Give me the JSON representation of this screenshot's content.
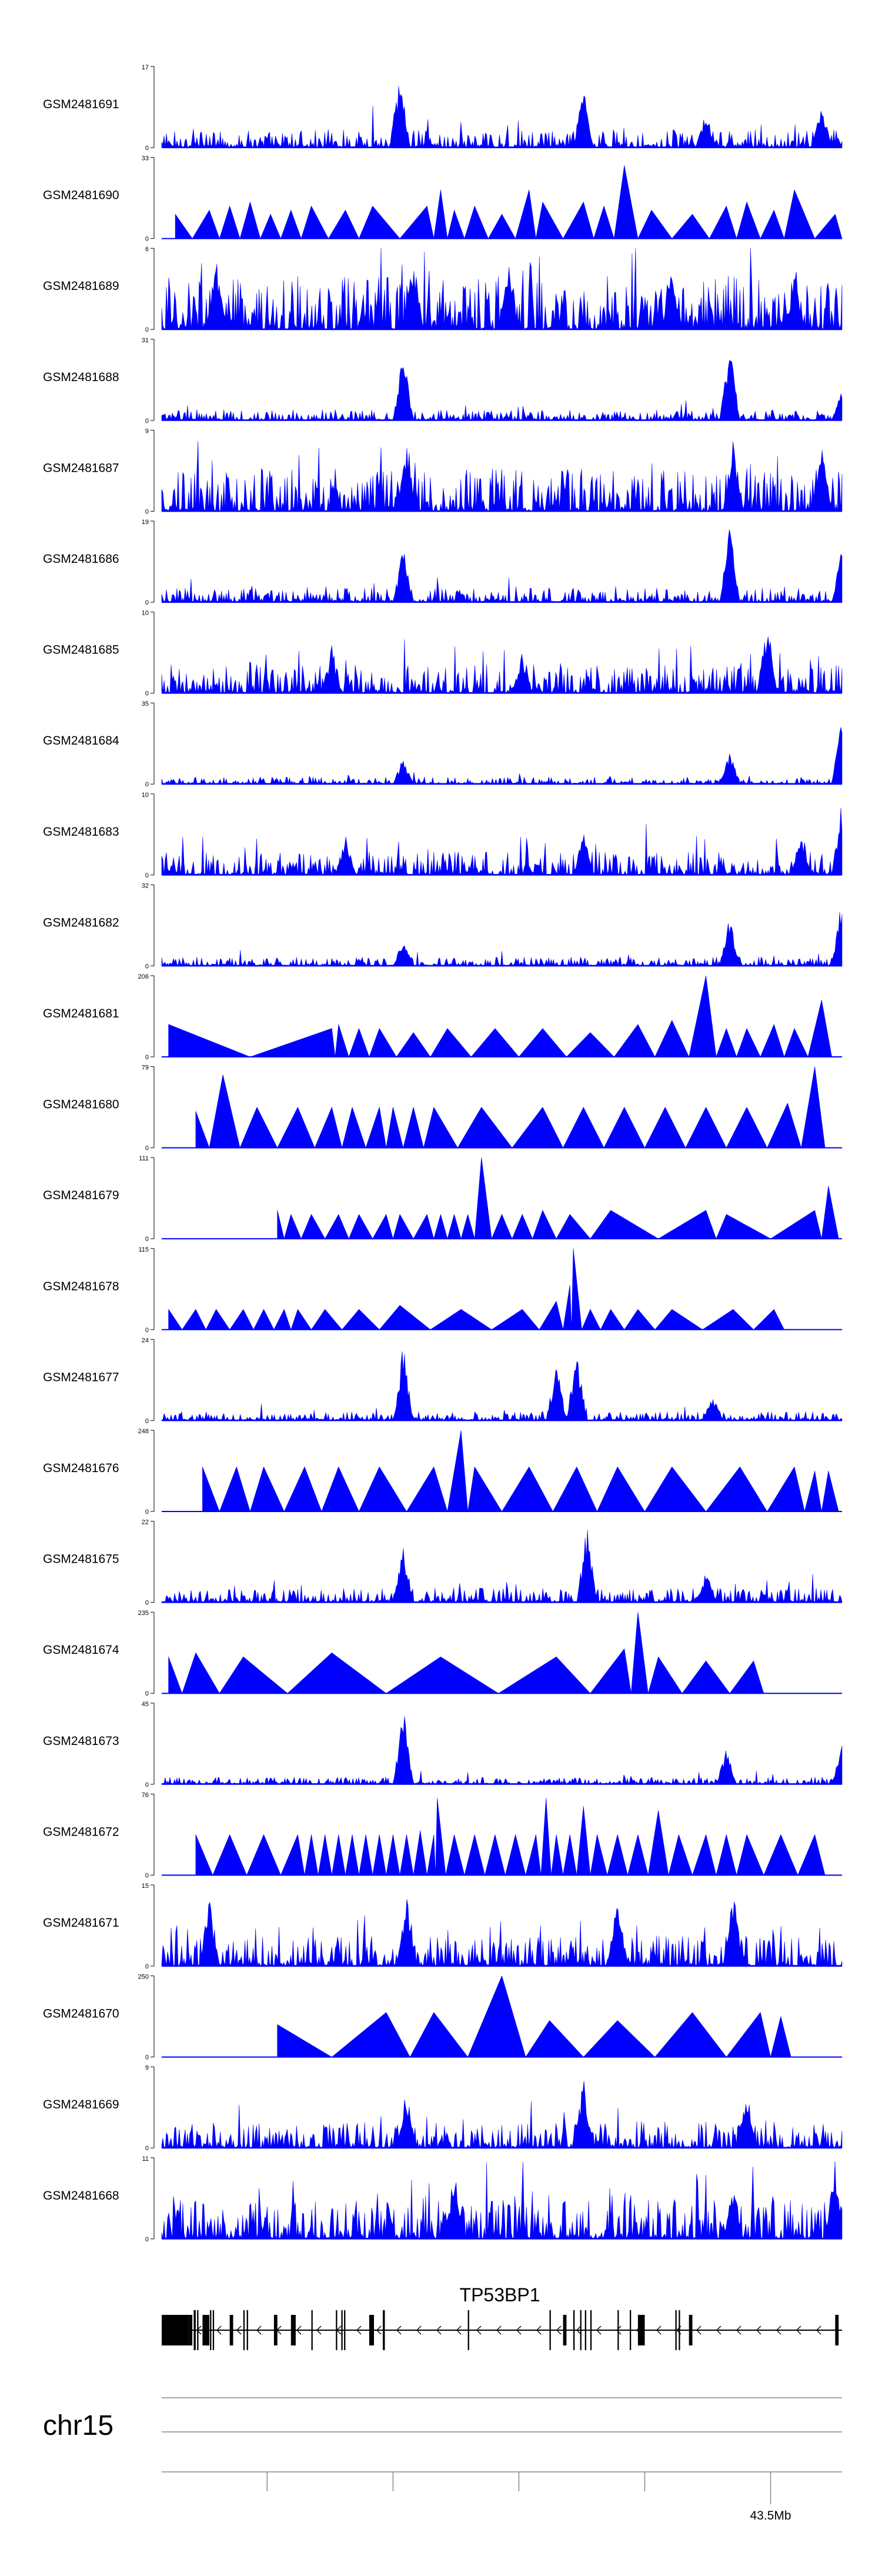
{
  "colors": {
    "signal": "#0000ff",
    "axis": "#000000",
    "text": "#000000",
    "ruler": "#888888"
  },
  "chart_data": {
    "type": "area",
    "title": "",
    "xlabel": "",
    "ylabel": "",
    "ymin_label": "0",
    "tracks": [
      {
        "name": "GSM2481691",
        "max": "17",
        "style": "dense",
        "density": 1.0,
        "peaks": [
          [
            0.35,
            1.0
          ],
          [
            0.62,
            0.8
          ],
          [
            0.8,
            0.45
          ],
          [
            0.97,
            0.55
          ]
        ]
      },
      {
        "name": "GSM2481690",
        "max": "33",
        "style": "sparse",
        "peaks": [
          [
            0.02,
            0.3
          ],
          [
            0.07,
            0.35
          ],
          [
            0.1,
            0.4
          ],
          [
            0.13,
            0.45
          ],
          [
            0.16,
            0.3
          ],
          [
            0.19,
            0.35
          ],
          [
            0.22,
            0.4
          ],
          [
            0.27,
            0.35
          ],
          [
            0.31,
            0.4
          ],
          [
            0.39,
            0.4
          ],
          [
            0.41,
            0.6
          ],
          [
            0.43,
            0.35
          ],
          [
            0.46,
            0.4
          ],
          [
            0.5,
            0.3
          ],
          [
            0.54,
            0.6
          ],
          [
            0.56,
            0.45
          ],
          [
            0.62,
            0.45
          ],
          [
            0.65,
            0.4
          ],
          [
            0.68,
            0.9
          ],
          [
            0.72,
            0.35
          ],
          [
            0.78,
            0.3
          ],
          [
            0.83,
            0.4
          ],
          [
            0.86,
            0.45
          ],
          [
            0.9,
            0.35
          ],
          [
            0.93,
            0.6
          ],
          [
            0.99,
            0.3
          ]
        ]
      },
      {
        "name": "GSM2481689",
        "max": "6",
        "style": "dense",
        "density": 3.0,
        "peaks": [
          [
            0.08,
            0.9
          ],
          [
            0.37,
            0.95
          ],
          [
            0.51,
            0.9
          ],
          [
            0.75,
            0.8
          ],
          [
            0.93,
            0.7
          ]
        ]
      },
      {
        "name": "GSM2481688",
        "max": "31",
        "style": "dense",
        "density": 0.6,
        "peaks": [
          [
            0.355,
            0.9
          ],
          [
            0.835,
            0.95
          ],
          [
            1.0,
            0.45
          ]
        ]
      },
      {
        "name": "GSM2481687",
        "max": "9",
        "style": "dense",
        "density": 2.4,
        "peaks": [
          [
            0.36,
            0.8
          ],
          [
            0.84,
            0.9
          ],
          [
            0.97,
            0.85
          ]
        ]
      },
      {
        "name": "GSM2481686",
        "max": "19",
        "style": "dense",
        "density": 0.8,
        "peaks": [
          [
            0.355,
            0.7
          ],
          [
            0.835,
            0.95
          ],
          [
            1.0,
            0.7
          ]
        ]
      },
      {
        "name": "GSM2481685",
        "max": "10",
        "style": "dense",
        "density": 1.6,
        "peaks": [
          [
            0.25,
            0.6
          ],
          [
            0.53,
            0.55
          ],
          [
            0.89,
            0.95
          ]
        ]
      },
      {
        "name": "GSM2481684",
        "max": "35",
        "style": "dense",
        "density": 0.4,
        "peaks": [
          [
            0.355,
            0.35
          ],
          [
            0.835,
            0.45
          ],
          [
            1.0,
            0.95
          ]
        ]
      },
      {
        "name": "GSM2481683",
        "max": "10",
        "style": "dense",
        "density": 1.3,
        "peaks": [
          [
            0.27,
            0.5
          ],
          [
            0.62,
            0.55
          ],
          [
            0.94,
            0.6
          ],
          [
            1.0,
            0.95
          ]
        ]
      },
      {
        "name": "GSM2481682",
        "max": "32",
        "style": "dense",
        "density": 0.5,
        "peaks": [
          [
            0.355,
            0.35
          ],
          [
            0.835,
            0.65
          ],
          [
            1.0,
            0.95
          ]
        ]
      },
      {
        "name": "GSM2481681",
        "max": "206",
        "style": "sparse",
        "peaks": [
          [
            0.01,
            0.4
          ],
          [
            0.25,
            0.35
          ],
          [
            0.26,
            0.4
          ],
          [
            0.29,
            0.35
          ],
          [
            0.32,
            0.35
          ],
          [
            0.37,
            0.3
          ],
          [
            0.42,
            0.35
          ],
          [
            0.49,
            0.35
          ],
          [
            0.56,
            0.35
          ],
          [
            0.63,
            0.3
          ],
          [
            0.7,
            0.4
          ],
          [
            0.75,
            0.45
          ],
          [
            0.8,
            1.0
          ],
          [
            0.83,
            0.35
          ],
          [
            0.86,
            0.35
          ],
          [
            0.9,
            0.4
          ],
          [
            0.93,
            0.35
          ],
          [
            0.97,
            0.7
          ]
        ]
      },
      {
        "name": "GSM2481680",
        "max": "79",
        "style": "sparse",
        "peaks": [
          [
            0.05,
            0.45
          ],
          [
            0.09,
            0.9
          ],
          [
            0.14,
            0.5
          ],
          [
            0.2,
            0.5
          ],
          [
            0.25,
            0.5
          ],
          [
            0.28,
            0.5
          ],
          [
            0.32,
            0.5
          ],
          [
            0.34,
            0.5
          ],
          [
            0.37,
            0.5
          ],
          [
            0.4,
            0.5
          ],
          [
            0.47,
            0.5
          ],
          [
            0.56,
            0.5
          ],
          [
            0.62,
            0.5
          ],
          [
            0.68,
            0.5
          ],
          [
            0.74,
            0.5
          ],
          [
            0.8,
            0.5
          ],
          [
            0.86,
            0.5
          ],
          [
            0.92,
            0.55
          ],
          [
            0.96,
            1.0
          ]
        ]
      },
      {
        "name": "GSM2481679",
        "max": "111",
        "style": "sparse",
        "peaks": [
          [
            0.17,
            0.35
          ],
          [
            0.19,
            0.3
          ],
          [
            0.22,
            0.3
          ],
          [
            0.26,
            0.3
          ],
          [
            0.29,
            0.3
          ],
          [
            0.33,
            0.3
          ],
          [
            0.35,
            0.3
          ],
          [
            0.39,
            0.3
          ],
          [
            0.41,
            0.3
          ],
          [
            0.43,
            0.3
          ],
          [
            0.45,
            0.3
          ],
          [
            0.47,
            1.0
          ],
          [
            0.5,
            0.3
          ],
          [
            0.53,
            0.3
          ],
          [
            0.56,
            0.35
          ],
          [
            0.6,
            0.3
          ],
          [
            0.66,
            0.35
          ],
          [
            0.8,
            0.35
          ],
          [
            0.83,
            0.3
          ],
          [
            0.96,
            0.35
          ],
          [
            0.98,
            0.65
          ]
        ]
      },
      {
        "name": "GSM2481678",
        "max": "115",
        "style": "sparse",
        "peaks": [
          [
            0.01,
            0.25
          ],
          [
            0.05,
            0.25
          ],
          [
            0.08,
            0.25
          ],
          [
            0.12,
            0.25
          ],
          [
            0.15,
            0.25
          ],
          [
            0.18,
            0.25
          ],
          [
            0.2,
            0.25
          ],
          [
            0.24,
            0.25
          ],
          [
            0.29,
            0.25
          ],
          [
            0.35,
            0.3
          ],
          [
            0.44,
            0.25
          ],
          [
            0.53,
            0.25
          ],
          [
            0.58,
            0.35
          ],
          [
            0.6,
            0.55
          ],
          [
            0.605,
            1.0
          ],
          [
            0.63,
            0.25
          ],
          [
            0.66,
            0.25
          ],
          [
            0.7,
            0.25
          ],
          [
            0.75,
            0.25
          ],
          [
            0.84,
            0.25
          ],
          [
            0.9,
            0.25
          ]
        ]
      },
      {
        "name": "GSM2481677",
        "max": "24",
        "style": "dense",
        "density": 0.5,
        "peaks": [
          [
            0.355,
            0.95
          ],
          [
            0.58,
            0.75
          ],
          [
            0.61,
            0.95
          ],
          [
            0.81,
            0.35
          ]
        ]
      },
      {
        "name": "GSM2481676",
        "max": "248",
        "style": "sparse",
        "peaks": [
          [
            0.06,
            0.55
          ],
          [
            0.11,
            0.55
          ],
          [
            0.15,
            0.55
          ],
          [
            0.21,
            0.55
          ],
          [
            0.26,
            0.55
          ],
          [
            0.32,
            0.55
          ],
          [
            0.4,
            0.55
          ],
          [
            0.44,
            1.0
          ],
          [
            0.46,
            0.55
          ],
          [
            0.54,
            0.55
          ],
          [
            0.61,
            0.55
          ],
          [
            0.67,
            0.55
          ],
          [
            0.75,
            0.55
          ],
          [
            0.85,
            0.55
          ],
          [
            0.93,
            0.55
          ],
          [
            0.96,
            0.5
          ],
          [
            0.98,
            0.5
          ]
        ]
      },
      {
        "name": "GSM2481675",
        "max": "22",
        "style": "dense",
        "density": 0.8,
        "peaks": [
          [
            0.355,
            0.75
          ],
          [
            0.625,
            1.0
          ],
          [
            0.8,
            0.4
          ]
        ]
      },
      {
        "name": "GSM2481674",
        "max": "235",
        "style": "sparse",
        "peaks": [
          [
            0.01,
            0.45
          ],
          [
            0.05,
            0.5
          ],
          [
            0.12,
            0.45
          ],
          [
            0.25,
            0.5
          ],
          [
            0.41,
            0.45
          ],
          [
            0.58,
            0.45
          ],
          [
            0.68,
            0.55
          ],
          [
            0.7,
            1.0
          ],
          [
            0.73,
            0.45
          ],
          [
            0.8,
            0.4
          ],
          [
            0.87,
            0.4
          ]
        ]
      },
      {
        "name": "GSM2481673",
        "max": "45",
        "style": "dense",
        "density": 0.4,
        "peaks": [
          [
            0.355,
            0.98
          ],
          [
            0.83,
            0.45
          ],
          [
            1.0,
            0.5
          ]
        ]
      },
      {
        "name": "GSM2481672",
        "max": "76",
        "style": "sparse",
        "peaks": [
          [
            0.05,
            0.5
          ],
          [
            0.1,
            0.5
          ],
          [
            0.15,
            0.5
          ],
          [
            0.2,
            0.5
          ],
          [
            0.22,
            0.5
          ],
          [
            0.24,
            0.5
          ],
          [
            0.26,
            0.5
          ],
          [
            0.28,
            0.5
          ],
          [
            0.3,
            0.5
          ],
          [
            0.32,
            0.5
          ],
          [
            0.34,
            0.5
          ],
          [
            0.36,
            0.5
          ],
          [
            0.38,
            0.55
          ],
          [
            0.4,
            0.5
          ],
          [
            0.405,
            0.95
          ],
          [
            0.43,
            0.5
          ],
          [
            0.46,
            0.5
          ],
          [
            0.49,
            0.5
          ],
          [
            0.52,
            0.5
          ],
          [
            0.55,
            0.5
          ],
          [
            0.565,
            0.95
          ],
          [
            0.58,
            0.5
          ],
          [
            0.6,
            0.5
          ],
          [
            0.62,
            0.85
          ],
          [
            0.64,
            0.5
          ],
          [
            0.67,
            0.5
          ],
          [
            0.7,
            0.5
          ],
          [
            0.73,
            0.8
          ],
          [
            0.76,
            0.5
          ],
          [
            0.8,
            0.5
          ],
          [
            0.83,
            0.5
          ],
          [
            0.86,
            0.5
          ],
          [
            0.91,
            0.5
          ],
          [
            0.96,
            0.5
          ]
        ]
      },
      {
        "name": "GSM2481671",
        "max": "15",
        "style": "dense",
        "density": 1.7,
        "peaks": [
          [
            0.07,
            0.9
          ],
          [
            0.36,
            1.0
          ],
          [
            0.67,
            0.9
          ],
          [
            0.84,
            0.95
          ]
        ]
      },
      {
        "name": "GSM2481670",
        "max": "250",
        "style": "sparse",
        "peaks": [
          [
            0.17,
            0.4
          ],
          [
            0.33,
            0.55
          ],
          [
            0.4,
            0.55
          ],
          [
            0.5,
            1.0
          ],
          [
            0.57,
            0.45
          ],
          [
            0.67,
            0.45
          ],
          [
            0.78,
            0.55
          ],
          [
            0.88,
            0.55
          ],
          [
            0.91,
            0.5
          ]
        ]
      },
      {
        "name": "GSM2481669",
        "max": "9",
        "style": "dense",
        "density": 1.4,
        "peaks": [
          [
            0.36,
            0.75
          ],
          [
            0.62,
            0.95
          ],
          [
            0.86,
            0.8
          ]
        ]
      },
      {
        "name": "GSM2481668",
        "max": "11",
        "style": "dense",
        "density": 2.2,
        "peaks": [
          [
            0.43,
            0.85
          ],
          [
            0.84,
            0.7
          ],
          [
            0.99,
            1.0
          ]
        ]
      }
    ],
    "gene": {
      "name": "TP53BP1",
      "strand": "-",
      "exons": [
        [
          0.0,
          0.04
        ],
        [
          0.04,
          0.045
        ],
        [
          0.047,
          0.05
        ],
        [
          0.052,
          0.054
        ],
        [
          0.06,
          0.07
        ],
        [
          0.071,
          0.073
        ],
        [
          0.075,
          0.077
        ],
        [
          0.1,
          0.105
        ],
        [
          0.12,
          0.122
        ],
        [
          0.125,
          0.127
        ],
        [
          0.165,
          0.17
        ],
        [
          0.19,
          0.197
        ],
        [
          0.22,
          0.222
        ],
        [
          0.256,
          0.258
        ],
        [
          0.264,
          0.266
        ],
        [
          0.268,
          0.27
        ],
        [
          0.305,
          0.312
        ],
        [
          0.325,
          0.328
        ],
        [
          0.45,
          0.452
        ],
        [
          0.57,
          0.572
        ],
        [
          0.59,
          0.595
        ],
        [
          0.605,
          0.607
        ],
        [
          0.615,
          0.617
        ],
        [
          0.622,
          0.624
        ],
        [
          0.63,
          0.632
        ],
        [
          0.67,
          0.672
        ],
        [
          0.688,
          0.69
        ],
        [
          0.7,
          0.71
        ],
        [
          0.755,
          0.757
        ],
        [
          0.76,
          0.762
        ],
        [
          0.775,
          0.78
        ],
        [
          0.99,
          0.995
        ]
      ]
    },
    "axis": {
      "chromosome": "chr15",
      "tick_positions": [
        0.155,
        0.34,
        0.525,
        0.71,
        0.895
      ],
      "tick_label": "43.5Mb",
      "labeled_tick_index": 4
    }
  }
}
